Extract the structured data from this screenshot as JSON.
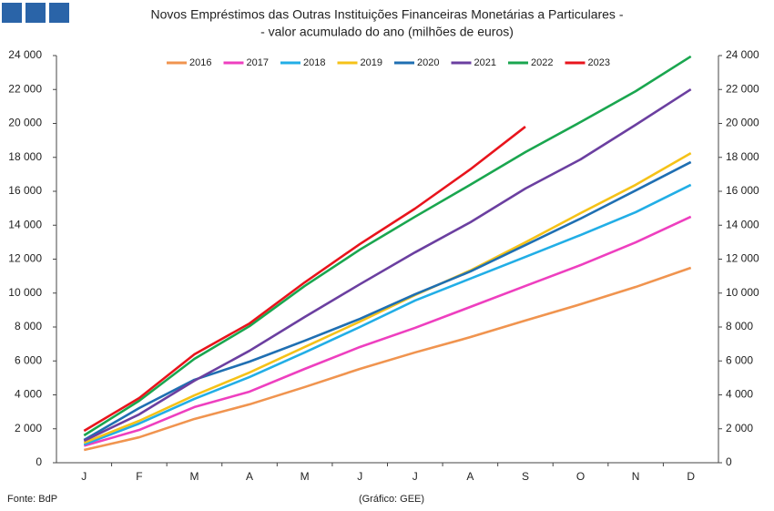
{
  "chart_data": {
    "type": "line",
    "title": "Novos Empréstimos das Outras Instituições Financeiras Monetárias a Particulares -",
    "subtitle": "- valor acumulado do ano (milhões de euros)",
    "source": "Fonte: BdP",
    "credit": "(Gráfico: GEE)",
    "categories": [
      "J",
      "F",
      "M",
      "A",
      "M",
      "J",
      "J",
      "A",
      "S",
      "O",
      "N",
      "D"
    ],
    "series": [
      {
        "name": "2016",
        "color": "#f0944f",
        "values": [
          750,
          1500,
          2580,
          3440,
          4460,
          5530,
          6500,
          7400,
          8380,
          9340,
          10360,
          11490
        ]
      },
      {
        "name": "2017",
        "color": "#ee3fbf",
        "values": [
          1000,
          1930,
          3280,
          4190,
          5530,
          6820,
          7950,
          9180,
          10420,
          11650,
          12990,
          14500
        ]
      },
      {
        "name": "2018",
        "color": "#22aee6",
        "values": [
          1070,
          2310,
          3760,
          5050,
          6500,
          8000,
          9560,
          10850,
          12130,
          13420,
          14770,
          16380
        ]
      },
      {
        "name": "2019",
        "color": "#f5c218",
        "values": [
          1180,
          2470,
          3970,
          5320,
          6820,
          8320,
          9880,
          11330,
          12990,
          14710,
          16380,
          18250
        ]
      },
      {
        "name": "2020",
        "color": "#1f6fb2",
        "values": [
          1340,
          3220,
          4890,
          5960,
          7190,
          8480,
          9930,
          11270,
          12830,
          14390,
          16050,
          17720
        ]
      },
      {
        "name": "2021",
        "color": "#6b3fa0",
        "values": [
          1290,
          2850,
          4830,
          6600,
          8590,
          10520,
          12400,
          14170,
          16160,
          17880,
          19920,
          22010
        ]
      },
      {
        "name": "2022",
        "color": "#1aa64f",
        "values": [
          1610,
          3650,
          6120,
          8050,
          10420,
          12560,
          14500,
          16380,
          18310,
          20080,
          21900,
          23950
        ]
      },
      {
        "name": "2023",
        "color": "#e8141c",
        "values": [
          1880,
          3810,
          6390,
          8210,
          10630,
          12890,
          14980,
          17290,
          19810,
          null,
          null,
          null
        ]
      }
    ],
    "ylim": [
      0,
      24000
    ],
    "yticks": [
      0,
      {
        "value": 2000,
        "label": "2 000"
      },
      {
        "value": 4000,
        "label": "4 000"
      },
      {
        "value": 6000,
        "label": "6 000"
      },
      {
        "value": 8000,
        "label": "8 000"
      },
      {
        "value": 10000,
        "label": "10 000"
      },
      {
        "value": 12000,
        "label": "12 000"
      },
      {
        "value": 14000,
        "label": "14 000"
      },
      {
        "value": 16000,
        "label": "16 000"
      },
      {
        "value": 18000,
        "label": "18 000"
      },
      {
        "value": 20000,
        "label": "20 000"
      },
      {
        "value": 22000,
        "label": "22 000"
      },
      {
        "value": 24000,
        "label": "24 000"
      }
    ],
    "y2lim": [
      0,
      24000
    ],
    "y2ticks": [
      0,
      {
        "value": 2000,
        "label": "2 000"
      },
      {
        "value": 4000,
        "label": "4 000"
      },
      {
        "value": 6000,
        "label": "6 000"
      },
      {
        "value": 8000,
        "label": "8 000"
      },
      {
        "value": 10000,
        "label": "10 000"
      },
      {
        "value": 12000,
        "label": "12 000"
      },
      {
        "value": 14000,
        "label": "14 000"
      },
      {
        "value": 16000,
        "label": "16 000"
      },
      {
        "value": 18000,
        "label": "18 000"
      },
      {
        "value": 20000,
        "label": "20 000"
      },
      {
        "value": 22000,
        "label": "22 000"
      },
      {
        "value": 24000,
        "label": "24 000"
      }
    ],
    "legend": "top",
    "grid": false
  }
}
